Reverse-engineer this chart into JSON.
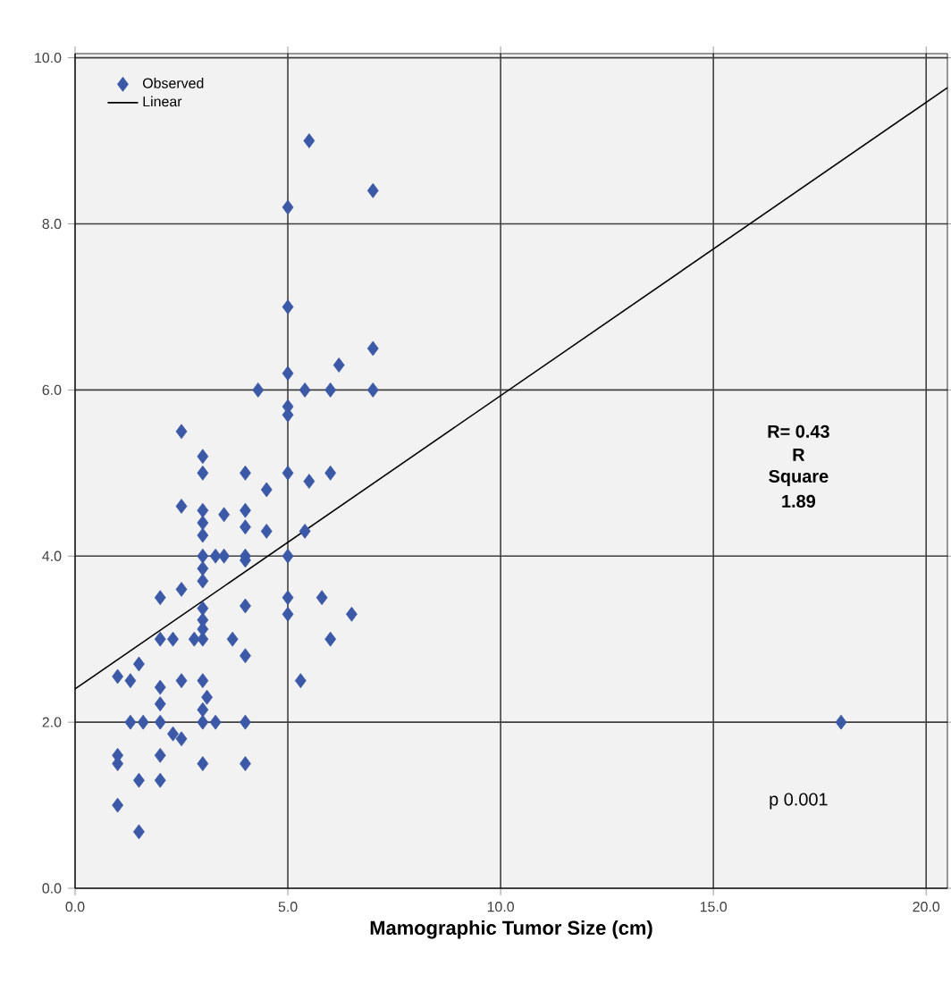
{
  "chart_data": {
    "type": "scatter",
    "xlabel": "Mamographic Tumor Size (cm)",
    "xlim": [
      0,
      20.5
    ],
    "ylim": [
      0,
      10.05
    ],
    "xticks": [
      {
        "value": 0,
        "label": "0.0"
      },
      {
        "value": 5,
        "label": "5.0"
      },
      {
        "value": 10,
        "label": "10.0"
      },
      {
        "value": 15,
        "label": "15.0"
      },
      {
        "value": 20,
        "label": "20.0"
      }
    ],
    "yticks": [
      {
        "value": 0,
        "label": "0.0"
      },
      {
        "value": 2,
        "label": "2.0"
      },
      {
        "value": 4,
        "label": "4.0"
      },
      {
        "value": 6,
        "label": "6.0"
      },
      {
        "value": 8,
        "label": "8.0"
      },
      {
        "value": 10,
        "label": "10.0"
      }
    ],
    "grid": true,
    "legend": "top left",
    "series": [
      {
        "name": "Observed",
        "marker": "diamond",
        "color": "#3c59a8",
        "x": [
          2.5,
          3,
          3,
          4,
          5,
          5.5,
          6,
          4.5,
          2.5,
          3,
          3.5,
          4,
          3,
          4,
          4.5,
          5.4,
          3,
          3,
          3.3,
          3.5,
          4,
          4,
          5,
          3,
          3,
          2,
          2.5,
          4,
          5,
          5.8,
          5,
          6.5,
          3,
          3,
          3,
          2,
          2.3,
          2.8,
          3,
          3.7,
          6,
          4,
          1.5,
          1,
          1.3,
          5.3,
          2,
          2.5,
          3,
          2,
          3.1,
          3,
          1.3,
          1.6,
          2,
          3,
          3.3,
          4,
          2.3,
          2.5,
          1,
          1,
          2,
          1.5,
          2,
          3,
          4,
          1,
          1.5,
          5.5,
          7,
          5,
          5,
          7,
          6.2,
          5,
          4.3,
          5.4,
          6,
          7,
          5,
          5,
          18
        ],
        "values": [
          5.5,
          5.2,
          5.0,
          5.0,
          5.0,
          4.9,
          5.0,
          4.8,
          4.6,
          4.55,
          4.5,
          4.55,
          4.4,
          4.35,
          4.3,
          4.3,
          4.25,
          4.0,
          4.0,
          4.0,
          4.0,
          3.95,
          4.0,
          3.85,
          3.7,
          3.5,
          3.6,
          3.4,
          3.5,
          3.5,
          3.3,
          3.3,
          3.37,
          3.23,
          3.12,
          3.0,
          3.0,
          3.0,
          3.0,
          3.0,
          3.0,
          2.8,
          2.7,
          2.55,
          2.5,
          2.5,
          2.42,
          2.5,
          2.5,
          2.22,
          2.3,
          2.15,
          2.0,
          2.0,
          2.0,
          2.0,
          2.0,
          2.0,
          1.86,
          1.8,
          1.6,
          1.5,
          1.6,
          1.3,
          1.3,
          1.5,
          1.5,
          1.0,
          0.68,
          9.0,
          8.4,
          8.2,
          7.0,
          6.5,
          6.3,
          6.2,
          6.0,
          6.0,
          6.0,
          6.0,
          5.8,
          5.7,
          2.0
        ]
      },
      {
        "name": "Linear",
        "type": "line",
        "line_style": "solid",
        "color": "#000000",
        "x": [
          0,
          20.5
        ],
        "values": [
          2.4,
          9.64
        ]
      }
    ],
    "annotations": [
      "R= 0.43",
      "R",
      "Square",
      "1.89",
      "p 0.001"
    ]
  }
}
